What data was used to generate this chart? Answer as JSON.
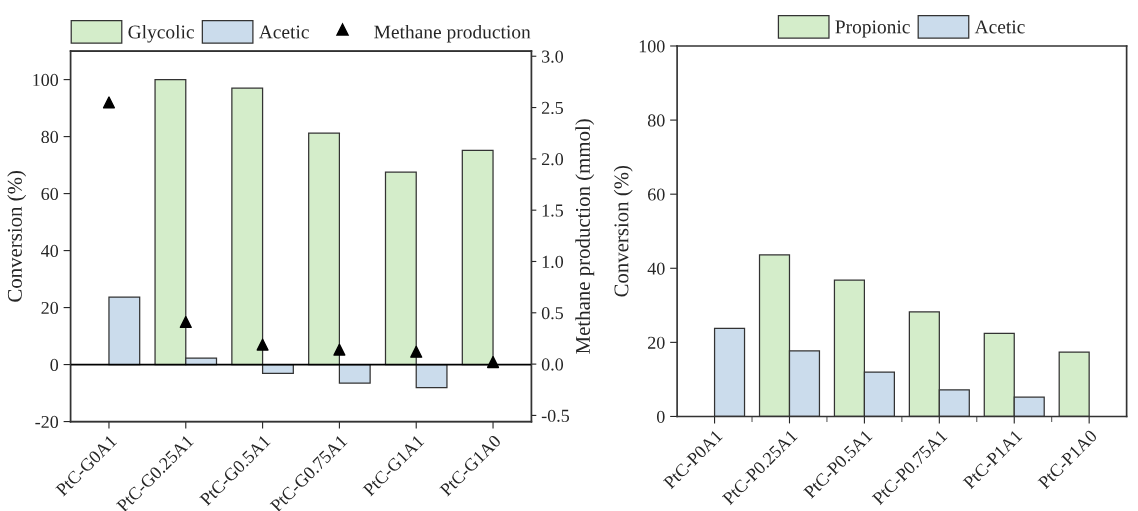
{
  "chart_data": [
    {
      "type": "bar",
      "ylabel": "Conversion (%)",
      "y2label": "Methane production (mmol)",
      "categories": [
        "PtC-G0A1",
        "PtC-G0.25A1",
        "PtC-G0.5A1",
        "PtC-G0.75A1",
        "PtC-G1A1",
        "PtC-G1A0"
      ],
      "series": [
        {
          "name": "Glycolic",
          "color": "#d4edca",
          "values": [
            null,
            100,
            97,
            81.2,
            67.5,
            75.2
          ]
        },
        {
          "name": "Acetic",
          "color": "#cbdcec",
          "values": [
            23.7,
            2.3,
            -3.1,
            -6.5,
            -8.1,
            null
          ]
        },
        {
          "name": "Methane production",
          "type": "scatter",
          "axis": "y2",
          "color": "#000000",
          "marker": "triangle",
          "values": [
            2.55,
            0.41,
            0.19,
            0.14,
            0.12,
            0.02
          ]
        }
      ],
      "ylim": [
        -20,
        110
      ],
      "yticks": [
        -20,
        0,
        20,
        40,
        60,
        80,
        100
      ],
      "y2lim": [
        -0.56,
        3.05
      ],
      "y2ticks": [
        -0.5,
        {
          "value": 0,
          "label": "0.0"
        },
        0.5,
        {
          "value": 1,
          "label": "1.0"
        },
        1.5,
        {
          "value": 2,
          "label": "2.0"
        },
        2.5,
        {
          "value": 3,
          "label": "3.0"
        }
      ],
      "ref_lines": [
        {
          "axis": "y",
          "value": 0
        }
      ],
      "legend": "top",
      "grid": false
    },
    {
      "type": "bar",
      "ylabel": "Conversion (%)",
      "categories": [
        "PtC-P0A1",
        "PtC-P0.25A1",
        "PtC-P0.5A1",
        "PtC-P0.75A1",
        "PtC-P1A1",
        "PtC-P1A0"
      ],
      "series": [
        {
          "name": "Propionic",
          "color": "#d4edca",
          "values": [
            null,
            43.6,
            36.8,
            28.2,
            22.4,
            17.4
          ]
        },
        {
          "name": "Acetic",
          "color": "#cbdcec",
          "values": [
            23.8,
            17.7,
            12.0,
            7.2,
            5.2,
            null
          ]
        }
      ],
      "ylim": [
        0,
        100
      ],
      "yticks": [
        0,
        20,
        40,
        60,
        80,
        100
      ],
      "legend": "top",
      "grid": false
    }
  ]
}
